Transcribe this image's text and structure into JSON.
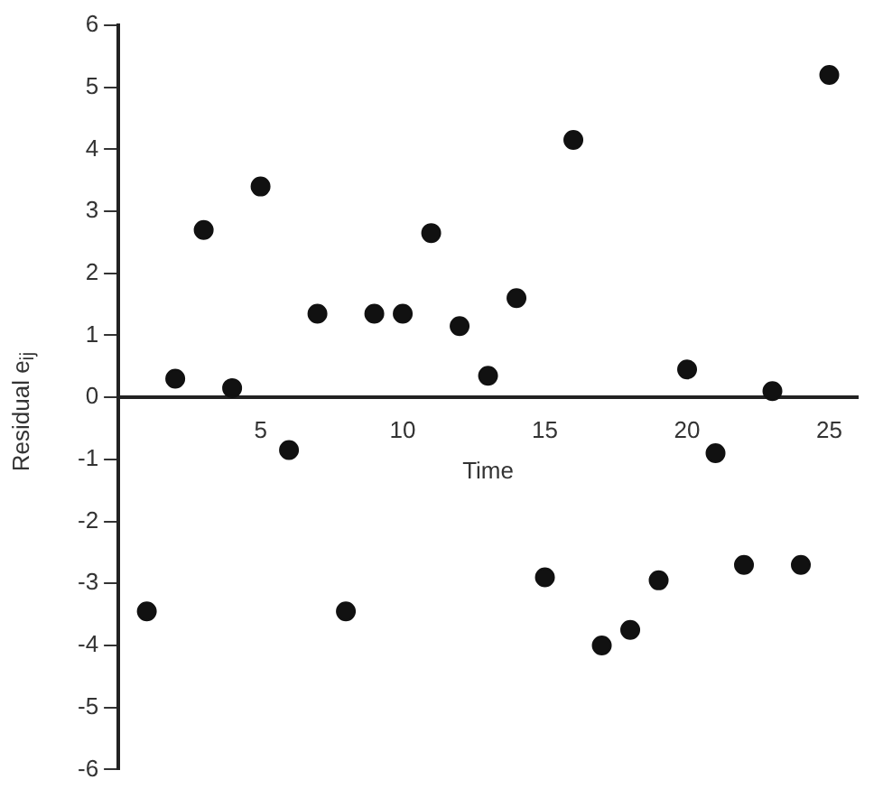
{
  "chart_data": {
    "type": "scatter",
    "xlabel": "Time",
    "ylabel": "Residual e$_{ij}$",
    "x": [
      1,
      2,
      3,
      4,
      5,
      6,
      7,
      8,
      9,
      10,
      11,
      12,
      13,
      14,
      15,
      16,
      17,
      18,
      19,
      20,
      21,
      22,
      23,
      24,
      25
    ],
    "series": [
      {
        "color": "#111111",
        "values": [
          -3.45,
          0.3,
          2.7,
          0.15,
          3.4,
          -0.85,
          1.35,
          -3.45,
          1.35,
          1.35,
          2.65,
          1.15,
          0.35,
          1.6,
          -2.9,
          4.15,
          -4.0,
          -3.75,
          -2.95,
          0.45,
          -0.9,
          -2.7,
          0.1,
          -2.7,
          5.2
        ]
      }
    ],
    "xlim": [
      0,
      26
    ],
    "xticks": [
      5,
      10,
      15,
      20,
      25
    ],
    "ylim": [
      -6,
      6
    ],
    "yticks": [
      -6,
      -5,
      -4,
      -3,
      -2,
      -1,
      0,
      1,
      2,
      3,
      4,
      5,
      6
    ],
    "grid": false,
    "legend": false,
    "marker": "circle"
  }
}
